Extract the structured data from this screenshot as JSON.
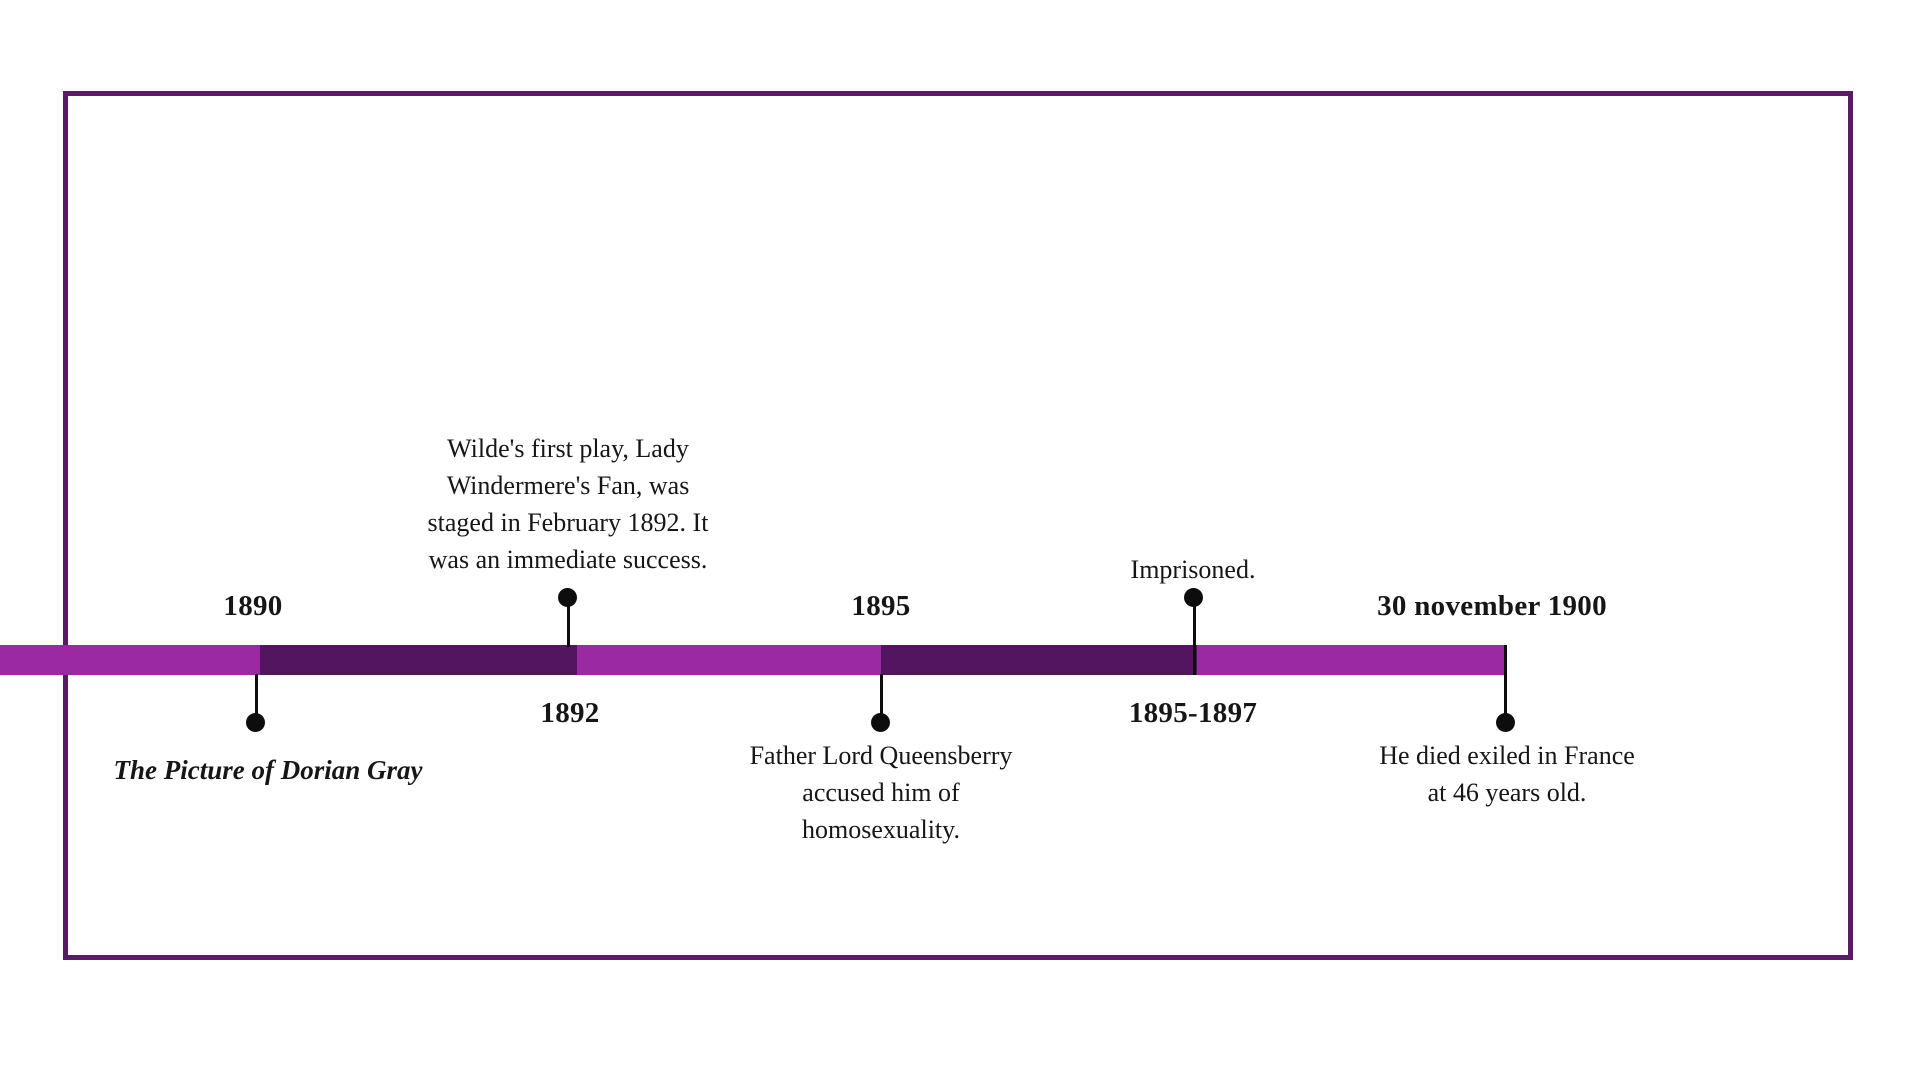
{
  "frame": {
    "border_color": "#5a1a66"
  },
  "timeline": {
    "bar_colors": {
      "bright": "#9b2aa2",
      "dark": "#53155f"
    },
    "marker_color": "#0d0d0d",
    "events": [
      {
        "year_label": "1890",
        "description": "The Picture of Dorian Gray",
        "side": "below"
      },
      {
        "year_label": "1892",
        "description": "Wilde's first play, Lady\nWindermere's Fan, was\nstaged in February 1892. It\nwas an immediate success.",
        "side": "above"
      },
      {
        "year_label": "1895",
        "description": "Father Lord Queensberry\naccused him of\nhomosexuality.",
        "side": "below"
      },
      {
        "year_label": "1895-1897",
        "description": "Imprisoned.",
        "side": "above"
      },
      {
        "year_label": "30 november 1900",
        "description": "He died exiled in France\nat 46 years old.",
        "side": "below"
      }
    ]
  }
}
